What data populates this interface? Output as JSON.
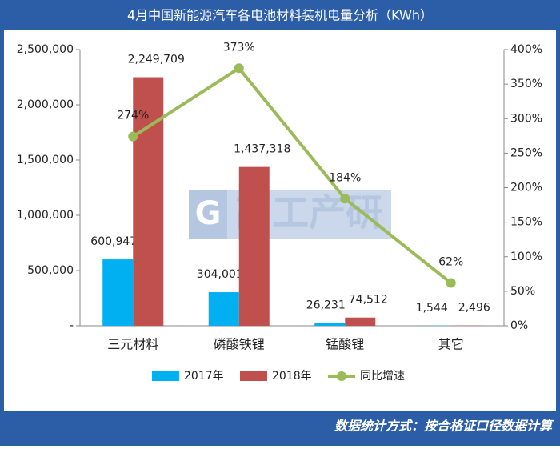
{
  "chart_data": {
    "type": "bar-line",
    "title": "4月中国新能源汽车各电池材料装机电量分析（KWh）",
    "note": "数据统计方式：按合格证口径数据计算",
    "watermark": {
      "logo": "G",
      "text": "高工产研"
    },
    "categories": [
      "三元材料",
      "磷酸铁锂",
      "锰酸锂",
      "其它"
    ],
    "series": [
      {
        "name": "2017年",
        "type": "bar",
        "color": "#00b0f0",
        "values": [
          600947,
          304001,
          26231,
          1544
        ],
        "value_labels": [
          "600,947",
          "304,001",
          "26,231",
          "1,544"
        ]
      },
      {
        "name": "2018年",
        "type": "bar",
        "color": "#c0504d",
        "values": [
          2249709,
          1437318,
          74512,
          2496
        ],
        "value_labels": [
          "2,249,709",
          "1,437,318",
          "74,512",
          "2,496"
        ]
      },
      {
        "name": "同比增速",
        "type": "line",
        "axis": "y2",
        "color": "#9bbb59",
        "values": [
          274,
          373,
          184,
          62
        ],
        "value_labels": [
          "274%",
          "373%",
          "184%",
          "62%"
        ]
      }
    ],
    "ylim": [
      0,
      2500000
    ],
    "yticks": [
      {
        "value": 0,
        "label": "-"
      },
      {
        "value": 500000,
        "label": "500,000"
      },
      {
        "value": 1000000,
        "label": "1,000,000"
      },
      {
        "value": 1500000,
        "label": "1,500,000"
      },
      {
        "value": 2000000,
        "label": "2,000,000"
      },
      {
        "value": 2500000,
        "label": "2,500,000"
      }
    ],
    "y2lim": [
      0,
      400
    ],
    "y2ticks": [
      {
        "value": 0,
        "label": "0%"
      },
      {
        "value": 50,
        "label": "50%"
      },
      {
        "value": 100,
        "label": "100%"
      },
      {
        "value": 150,
        "label": "150%"
      },
      {
        "value": 200,
        "label": "200%"
      },
      {
        "value": 250,
        "label": "250%"
      },
      {
        "value": 300,
        "label": "300%"
      },
      {
        "value": 350,
        "label": "350%"
      },
      {
        "value": 400,
        "label": "400%"
      }
    ],
    "legend": "bottom"
  }
}
